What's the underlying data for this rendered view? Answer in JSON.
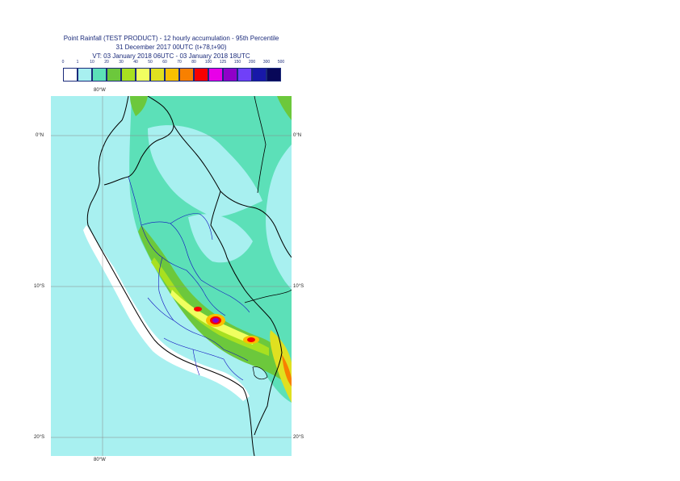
{
  "header": {
    "title_line1": "Point Rainfall (TEST PRODUCT) - 12 hourly accumulation - 95th Percentile",
    "title_line2": "31 December 2017 00UTC (t+78,t+90)",
    "title_line3": "VT: 03 January 2018 06UTC - 03 January 2018 18UTC"
  },
  "legend": {
    "ticks": [
      "0",
      "1",
      "10",
      "20",
      "30",
      "40",
      "50",
      "60",
      "70",
      "80",
      "100",
      "125",
      "150",
      "200",
      "300",
      "500"
    ],
    "colors": [
      "#ffffff",
      "#a8f0f0",
      "#5ce0b8",
      "#6cc83c",
      "#a8e020",
      "#f0ff60",
      "#e0e020",
      "#f8c000",
      "#f88000",
      "#f80000",
      "#e800e8",
      "#9000c8",
      "#7040f8",
      "#1818a8",
      "#080858"
    ]
  },
  "map": {
    "lon_top": "80°W",
    "lon_bottom": "80°W",
    "lat_labels": [
      "0°N",
      "10°S",
      "20°S"
    ],
    "lat_labels_right": [
      "0°N",
      "10°S",
      "20°S"
    ]
  }
}
